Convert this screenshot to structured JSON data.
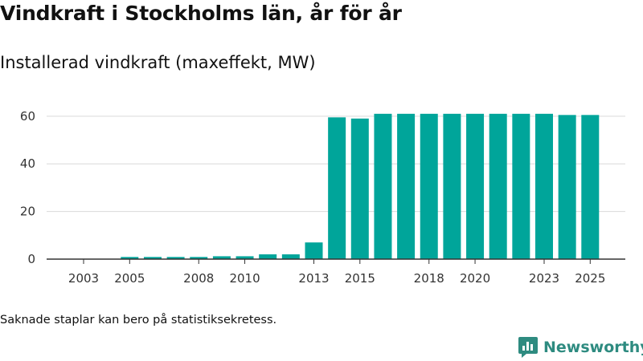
{
  "title": "Vindkraft i Stockholms län, år för år",
  "subtitle": "Installerad vindkraft (maxeffekt, MW)",
  "note": "Saknade staplar kan bero på statistiksekretess.",
  "brand": {
    "name": "Newsworthy",
    "icon": "newsworthy-logo-icon"
  },
  "colors": {
    "bar": "#00a59a",
    "grid": "#d9d9d9",
    "axis": "#333333",
    "brand": "#2e8b80"
  },
  "chart_data": {
    "type": "bar",
    "title": "Vindkraft i Stockholms län, år för år",
    "ylabel": "Installerad vindkraft (maxeffekt, MW)",
    "xlabel": "",
    "categories": [
      "2003",
      "2004",
      "2005",
      "2006",
      "2007",
      "2008",
      "2009",
      "2010",
      "2011",
      "2012",
      "2013",
      "2014",
      "2015",
      "2016",
      "2017",
      "2018",
      "2019",
      "2020",
      "2021",
      "2022",
      "2023",
      "2024",
      "2025"
    ],
    "values": [
      null,
      null,
      0.9,
      0.9,
      0.9,
      0.9,
      1.2,
      1.2,
      2.0,
      2.0,
      7.0,
      59.5,
      59.0,
      61.0,
      61.0,
      61.0,
      61.0,
      61.0,
      61.0,
      61.0,
      61.0,
      60.5,
      60.5
    ],
    "x_tick_labels": [
      "2003",
      "2005",
      "2008",
      "2010",
      "2013",
      "2015",
      "2018",
      "2020",
      "2023",
      "2025"
    ],
    "y_ticks": [
      0,
      20,
      40,
      60
    ],
    "ylim": [
      0,
      66
    ],
    "grid": true
  }
}
